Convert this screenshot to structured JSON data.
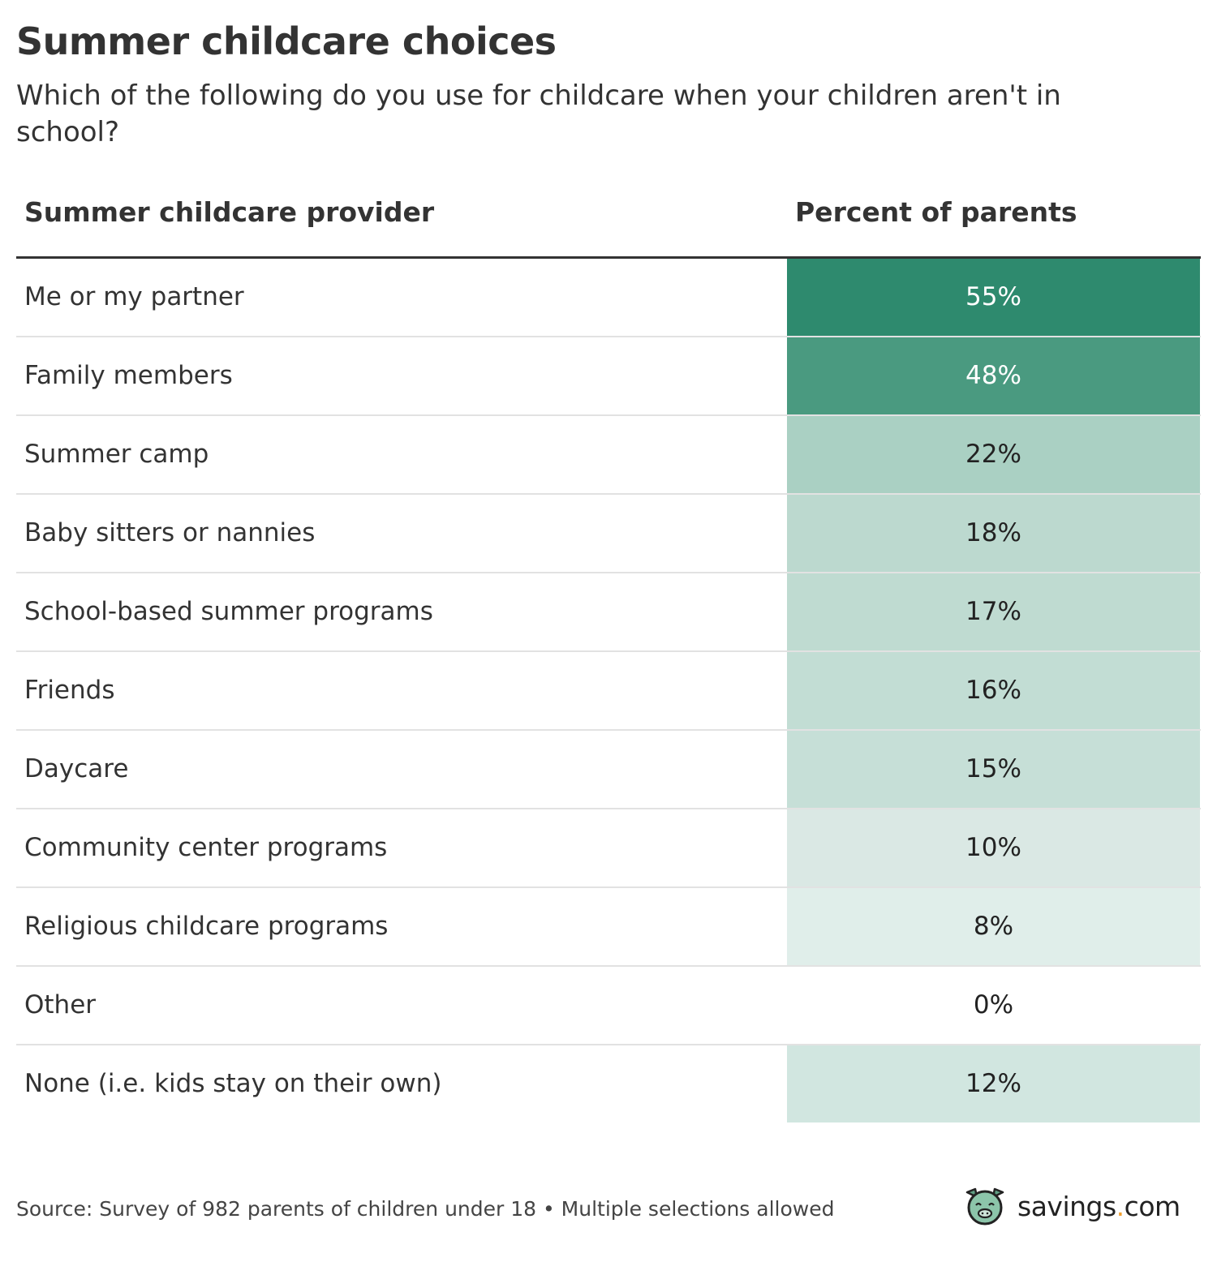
{
  "title": "Summer childcare choices",
  "subtitle": "Which of the following do you use for childcare when your children aren't in school?",
  "chart_data": {
    "type": "table",
    "columns": [
      "Summer childcare provider",
      "Percent of parents"
    ],
    "rows": [
      {
        "label": "Me or my partner",
        "value": 55,
        "display": "55%",
        "color": "#2e8a6e",
        "text_color": "#ffffff"
      },
      {
        "label": "Family members",
        "value": 48,
        "display": "48%",
        "color": "#4a9a80",
        "text_color": "#ffffff"
      },
      {
        "label": "Summer camp",
        "value": 22,
        "display": "22%",
        "color": "#aad0c3",
        "text_color": "#222222"
      },
      {
        "label": "Baby sitters or nannies",
        "value": 18,
        "display": "18%",
        "color": "#bcd9cf",
        "text_color": "#222222"
      },
      {
        "label": "School-based summer programs",
        "value": 17,
        "display": "17%",
        "color": "#bfdbd1",
        "text_color": "#222222"
      },
      {
        "label": "Friends",
        "value": 16,
        "display": "16%",
        "color": "#c2ddd4",
        "text_color": "#222222"
      },
      {
        "label": "Daycare",
        "value": 15,
        "display": "15%",
        "color": "#c6dfd7",
        "text_color": "#222222"
      },
      {
        "label": "Community center programs",
        "value": 10,
        "display": "10%",
        "color": "#dae8e4",
        "text_color": "#222222"
      },
      {
        "label": "Religious childcare programs",
        "value": 8,
        "display": "8%",
        "color": "#e0eeea",
        "text_color": "#222222"
      },
      {
        "label": "Other",
        "value": 0,
        "display": "0%",
        "color": "#ffffff",
        "text_color": "#222222"
      },
      {
        "label": "None (i.e. kids stay on their own)",
        "value": 12,
        "display": "12%",
        "color": "#d1e6e0",
        "text_color": "#222222"
      }
    ]
  },
  "footer": {
    "source": "Source: Survey of 982 parents of children under 18 • Multiple selections allowed",
    "logo": {
      "name": "savings",
      "dot": ".",
      "tld": "com",
      "icon": "pig-icon"
    }
  }
}
